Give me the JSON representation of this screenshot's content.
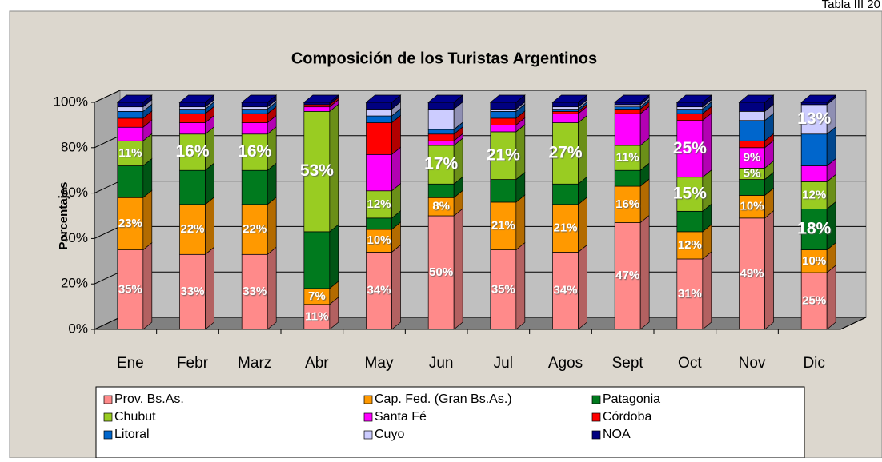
{
  "corner_note": "Tabla III 20",
  "chart_data": {
    "type": "stacked-bar-3d",
    "title": "Composición de los Turistas Argentinos",
    "y_label": "Porcentajes",
    "categories": [
      "Ene",
      "Febr",
      "Marz",
      "Abr",
      "May",
      "Jun",
      "Jul",
      "Agos",
      "Sept",
      "Oct",
      "Nov",
      "Dic"
    ],
    "ylim": [
      0,
      100
    ],
    "yticks": [
      {
        "value": 0,
        "label": "0%"
      },
      {
        "value": 20,
        "label": "20%"
      },
      {
        "value": 40,
        "label": "40%"
      },
      {
        "value": 60,
        "label": "60%"
      },
      {
        "value": 80,
        "label": "80%"
      },
      {
        "value": 100,
        "label": "100%"
      }
    ],
    "grid": true,
    "legend": "bottom",
    "series": [
      {
        "name": "Prov. Bs.As.",
        "color": "#ff8a8a",
        "values": [
          35,
          33,
          33,
          11,
          34,
          50,
          35,
          34,
          47,
          31,
          49,
          25
        ],
        "value_labels": [
          "35%",
          "33%",
          "33%",
          "11%",
          "34%",
          "50%",
          "35%",
          "34%",
          "47%",
          "31%",
          "49%",
          "25%"
        ]
      },
      {
        "name": "Cap. Fed. (Gran Bs.As.)",
        "color": "#ff9900",
        "values": [
          23,
          22,
          22,
          7,
          10,
          8,
          21,
          21,
          16,
          12,
          10,
          10
        ],
        "value_labels": [
          "23%",
          "22%",
          "22%",
          "7%",
          "10%",
          "8%",
          "21%",
          "21%",
          "16%",
          "12%",
          "10%",
          "10%"
        ]
      },
      {
        "name": "Patagonia",
        "color": "#007a1e",
        "values": [
          14,
          15,
          15,
          25,
          5,
          6,
          10,
          9,
          7,
          9,
          7,
          18
        ],
        "value_labels": [
          null,
          null,
          null,
          null,
          null,
          null,
          null,
          null,
          null,
          null,
          null,
          "18%"
        ]
      },
      {
        "name": "Chubut",
        "color": "#99cc22",
        "values": [
          11,
          16,
          16,
          53,
          12,
          17,
          21,
          27,
          11,
          15,
          5,
          12
        ],
        "value_labels": [
          "11%",
          "16%",
          "16%",
          "53%",
          "12%",
          "17%",
          "21%",
          "27%",
          "11%",
          "15%",
          "5%",
          "12%"
        ]
      },
      {
        "name": "Santa Fé",
        "color": "#ff00ff",
        "values": [
          6,
          5,
          5,
          2,
          16,
          2,
          3,
          4,
          14,
          25,
          9,
          7
        ],
        "value_labels": [
          null,
          null,
          null,
          null,
          null,
          null,
          null,
          null,
          null,
          "25%",
          "9%",
          null
        ]
      },
      {
        "name": "Córdoba",
        "color": "#ff0000",
        "values": [
          4,
          4,
          4,
          1,
          14,
          3,
          3,
          1,
          2,
          3,
          3,
          0
        ],
        "value_labels": [
          null,
          null,
          null,
          null,
          null,
          null,
          null,
          null,
          null,
          null,
          null,
          null
        ]
      },
      {
        "name": "Litoral",
        "color": "#0066cc",
        "values": [
          3,
          2,
          2,
          0,
          3,
          2,
          3,
          1,
          1,
          2,
          9,
          14
        ],
        "value_labels": [
          null,
          null,
          null,
          null,
          null,
          null,
          null,
          null,
          null,
          null,
          null,
          null
        ]
      },
      {
        "name": "Cuyo",
        "color": "#ccccff",
        "values": [
          2,
          1,
          1,
          0,
          3,
          9,
          1,
          1,
          1,
          1,
          4,
          13
        ],
        "value_labels": [
          null,
          null,
          null,
          null,
          null,
          null,
          null,
          null,
          null,
          null,
          null,
          "13%"
        ]
      },
      {
        "name": "NOA",
        "color": "#000080",
        "values": [
          2,
          2,
          2,
          1,
          3,
          3,
          3,
          2,
          1,
          2,
          4,
          1
        ],
        "value_labels": [
          null,
          null,
          null,
          null,
          null,
          null,
          null,
          null,
          null,
          null,
          null,
          null
        ]
      }
    ]
  }
}
